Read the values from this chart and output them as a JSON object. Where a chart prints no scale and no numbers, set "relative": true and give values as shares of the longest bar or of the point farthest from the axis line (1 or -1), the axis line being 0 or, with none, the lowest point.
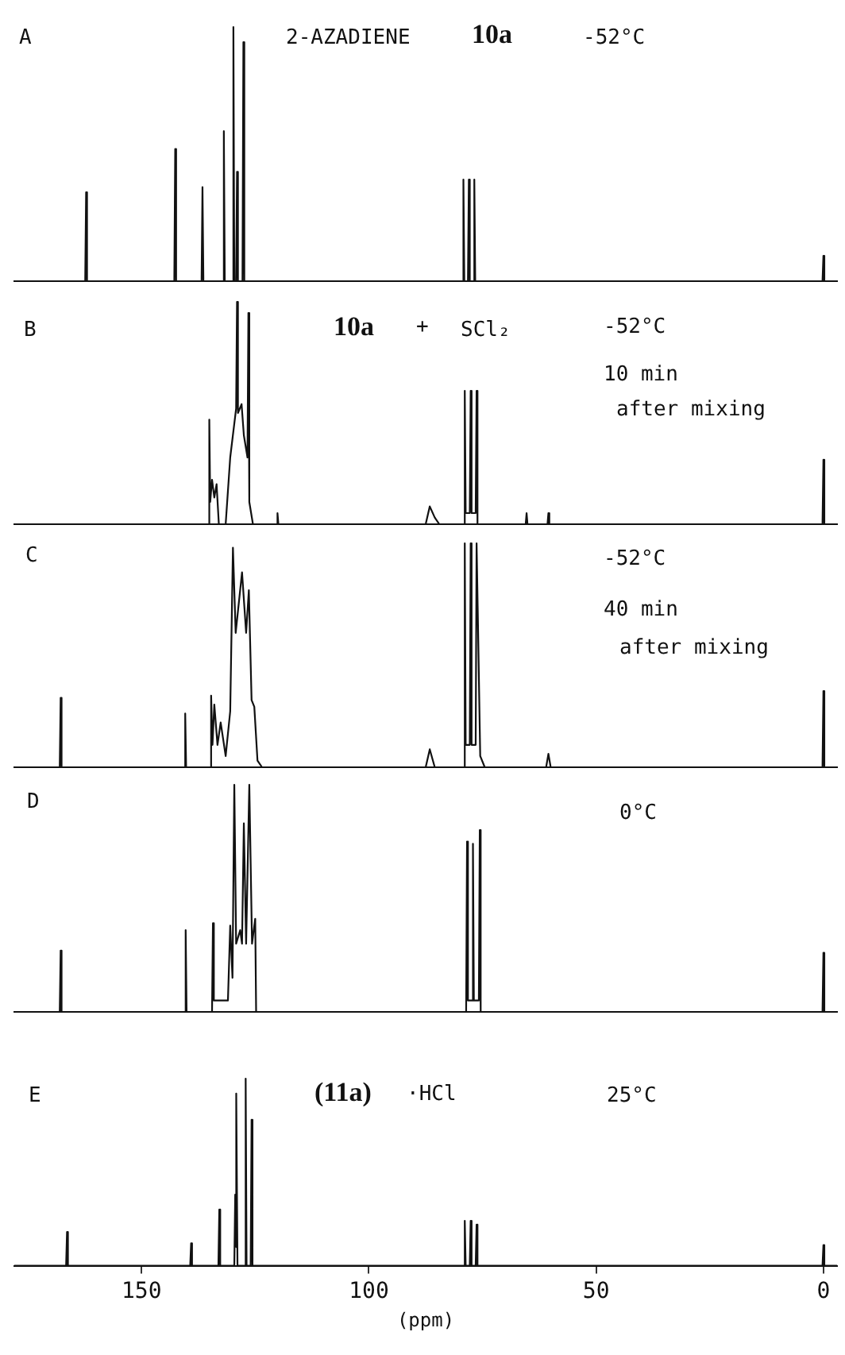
{
  "chart_data": [
    {
      "type": "line",
      "relative": true,
      "color": "#111111",
      "xlim": [
        178,
        -3
      ],
      "tick_labels": false,
      "annotations": [
        "A",
        "2-AZADIENE",
        "10a",
        "-52°C"
      ],
      "x": [
        178,
        162.4,
        162.2,
        162.0,
        142.8,
        142.6,
        142.4,
        136.8,
        136.6,
        136.4,
        132.1,
        131.9,
        131.7,
        130.0,
        129.8,
        129.6,
        129.2,
        129.0,
        128.8,
        127.8,
        127.6,
        127.4,
        79.4,
        79.2,
        79.0,
        78.2,
        78.0,
        77.8,
        77.0,
        76.8,
        76.6,
        0.2,
        0,
        -0.2,
        -3
      ],
      "values": [
        0,
        0,
        0.35,
        0,
        0,
        0.52,
        0,
        0,
        0.37,
        0,
        0,
        0.59,
        0,
        0,
        1,
        0,
        0,
        0.43,
        0,
        0,
        0.94,
        0,
        0,
        0.4,
        0,
        0,
        0.4,
        0,
        0,
        0.4,
        0,
        0,
        0.1,
        0,
        0
      ]
    },
    {
      "type": "line",
      "relative": true,
      "color": "#111111",
      "xlim": [
        178,
        -3
      ],
      "tick_labels": false,
      "annotations": [
        "B",
        "10a",
        "+",
        "SCl₂",
        "-52°C",
        "10 min",
        "after mixing"
      ],
      "x": [
        178,
        136,
        135.3,
        135.1,
        134.9,
        134.5,
        134.0,
        133.5,
        133,
        131.5,
        130.5,
        129.2,
        129.0,
        128.8,
        128,
        127.5,
        126.7,
        126.5,
        126.3,
        125.5,
        120.3,
        120.1,
        119.9,
        87.5,
        86.6,
        85.5,
        84.5,
        79.1,
        78.9,
        78.7,
        77.8,
        77.6,
        77.4,
        76.5,
        76.3,
        76.1,
        65.5,
        65.3,
        65.1,
        60.7,
        60.5,
        60.3,
        0.2,
        0,
        -0.2,
        -3
      ],
      "values": [
        0,
        0,
        0,
        0.47,
        0.1,
        0.2,
        0.12,
        0.18,
        0,
        0,
        0.3,
        0.52,
        1,
        0.5,
        0.54,
        0.4,
        0.3,
        0.95,
        0.1,
        0,
        0,
        0.05,
        0,
        0,
        0.08,
        0.03,
        0,
        0,
        0.6,
        0.05,
        0.05,
        0.6,
        0.05,
        0.05,
        0.6,
        0,
        0,
        0.05,
        0,
        0,
        0.05,
        0,
        0,
        0.29,
        0,
        0
      ]
    },
    {
      "type": "line",
      "relative": true,
      "color": "#111111",
      "xlim": [
        178,
        -3
      ],
      "tick_labels": false,
      "annotations": [
        "C",
        "-52°C",
        "40 min",
        "after mixing"
      ],
      "x": [
        178,
        168,
        167.8,
        167.6,
        140.6,
        140.4,
        140.2,
        135,
        134.7,
        134.4,
        134,
        133.3,
        132.6,
        131.5,
        130.5,
        129.9,
        129.3,
        127.9,
        127,
        126.4,
        125.8,
        125.2,
        124.5,
        123.5,
        87.5,
        86.6,
        85.5,
        79.1,
        78.9,
        78.7,
        77.8,
        77.6,
        77.4,
        76.5,
        76.3,
        75.5,
        74.5,
        61,
        60.5,
        60,
        0.2,
        0,
        -0.2,
        -3
      ],
      "values": [
        0,
        0,
        0.31,
        0,
        0,
        0.24,
        0,
        0,
        0.32,
        0.1,
        0.28,
        0.1,
        0.2,
        0.05,
        0.25,
        0.98,
        0.6,
        0.87,
        0.6,
        0.79,
        0.3,
        0.27,
        0.03,
        0,
        0,
        0.08,
        0,
        0,
        1,
        0.1,
        0.1,
        1,
        0.1,
        0.1,
        1,
        0.05,
        0,
        0,
        0.06,
        0,
        0,
        0.34,
        0,
        0
      ]
    },
    {
      "type": "line",
      "relative": true,
      "color": "#111111",
      "xlim": [
        178,
        -3
      ],
      "tick_labels": false,
      "annotations": [
        "D",
        "0°C"
      ],
      "x": [
        178,
        168,
        167.8,
        167.6,
        140.5,
        140.3,
        140.1,
        134.5,
        134.3,
        134.1,
        131,
        130.5,
        130,
        129.6,
        129.2,
        128.3,
        127.9,
        127.5,
        127,
        126.3,
        125.7,
        125,
        124.8,
        78.6,
        78.4,
        78.2,
        77.3,
        77.1,
        76.9,
        75.8,
        75.6,
        75.4,
        0.2,
        0,
        -0.2,
        -3
      ],
      "values": [
        0,
        0,
        0.27,
        0,
        0,
        0.36,
        0,
        0,
        0.39,
        0.05,
        0.05,
        0.38,
        0.15,
        1,
        0.3,
        0.36,
        0.3,
        0.83,
        0.3,
        1,
        0.3,
        0.41,
        0,
        0,
        0.75,
        0.05,
        0.05,
        0.74,
        0.05,
        0.05,
        0.8,
        0,
        0,
        0.26,
        0,
        0
      ]
    },
    {
      "type": "line",
      "relative": true,
      "color": "#111111",
      "xlim": [
        178,
        -3
      ],
      "xticks": [
        150,
        100,
        50,
        0
      ],
      "tick_labels": "x",
      "xlabel": "(ppm)",
      "annotations": [
        "E",
        "(11a)",
        "·HCl",
        "25°C"
      ],
      "x": [
        178,
        166.6,
        166.4,
        166.2,
        139.3,
        139.1,
        138.9,
        133.1,
        132.9,
        132.7,
        129.6,
        129.4,
        129.25,
        129.1,
        128.9,
        127.3,
        127.1,
        126.9,
        126,
        125.8,
        125.6,
        79.1,
        78.9,
        78.7,
        77.8,
        77.6,
        77.4,
        76.5,
        76.3,
        76.1,
        0.2,
        0,
        -0.2,
        -3
      ],
      "values": [
        0,
        0,
        0.18,
        0,
        0,
        0.12,
        0,
        0,
        0.3,
        0,
        0,
        0.38,
        0.1,
        0.92,
        0,
        0,
        1,
        0,
        0,
        0.78,
        0,
        0,
        0.24,
        0,
        0,
        0.24,
        0,
        0,
        0.22,
        0,
        0,
        0.11,
        0,
        0
      ]
    }
  ]
}
